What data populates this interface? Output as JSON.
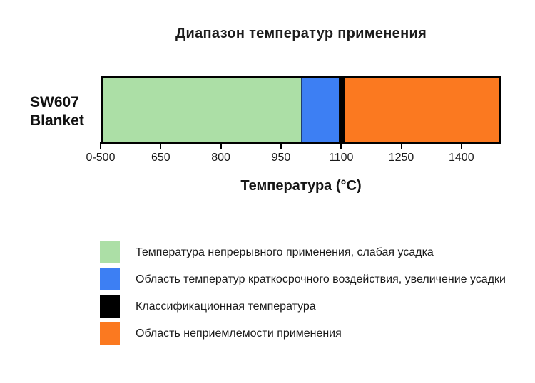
{
  "title": "Диапазон температур применения",
  "category_label": "SW607 Blanket",
  "axis_label": "Температура (°C)",
  "colors": {
    "continuous_use_green": "#ACDFA6",
    "short_term_blue": "#3D7FF3",
    "classification_black": "#000000",
    "unacceptable_orange": "#FB7920",
    "bar_border": "#000000",
    "text": "#1b1b1b",
    "background": "#ffffff"
  },
  "chart_data": {
    "type": "bar",
    "orientation": "horizontal-stacked",
    "title": "Диапазон температур применения",
    "xlabel": "Температура (°C)",
    "category": "SW607 Blanket",
    "axis_range": [
      500,
      1500
    ],
    "ticks": [
      {
        "value": 500,
        "label": "0-500"
      },
      {
        "value": 650,
        "label": "650"
      },
      {
        "value": 800,
        "label": "800"
      },
      {
        "value": 950,
        "label": "950"
      },
      {
        "value": 1100,
        "label": "1100"
      },
      {
        "value": 1250,
        "label": "1250"
      },
      {
        "value": 1400,
        "label": "1400"
      }
    ],
    "segments": [
      {
        "name": "continuous-use",
        "from": 500,
        "to": 1000,
        "color": "#ACDFA6",
        "label": "Температура непрерывного применения, слабая усадка"
      },
      {
        "name": "short-term-exposure",
        "from": 1000,
        "to": 1095,
        "color": "#3D7FF3",
        "label": "Область температур краткосрочного воздействия, увеличение усадки"
      },
      {
        "name": "classification-temperature",
        "from": 1095,
        "to": 1110,
        "color": "#000000",
        "label": "Классификационная температура"
      },
      {
        "name": "unacceptable-use",
        "from": 1110,
        "to": 1500,
        "color": "#FB7920",
        "label": "Область неприемлемости применения"
      }
    ],
    "legend_position": "bottom-left",
    "grid": false
  }
}
